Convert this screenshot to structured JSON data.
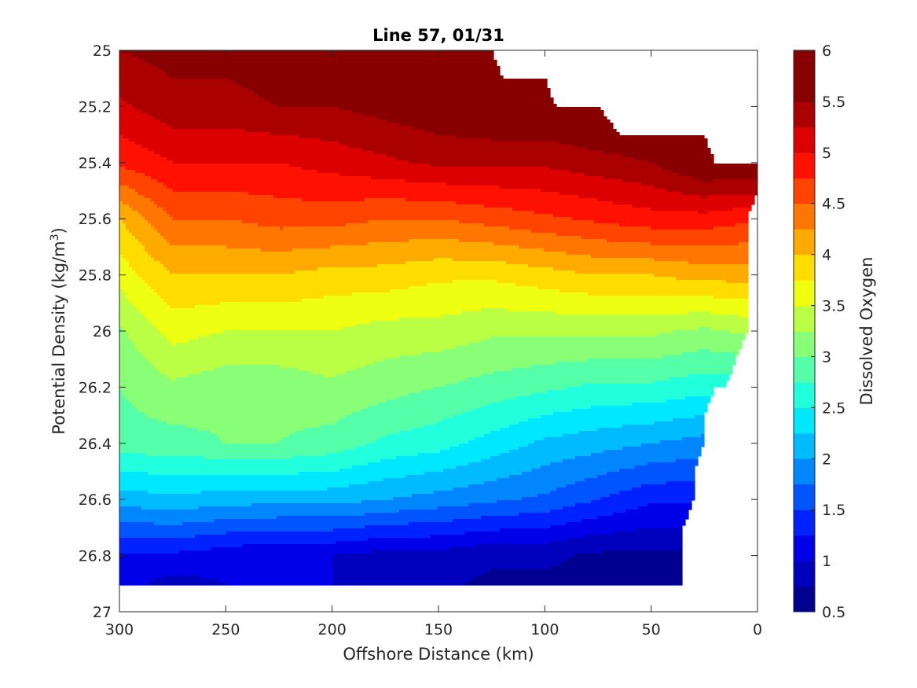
{
  "chart_data": {
    "type": "heatmap",
    "subtype": "filled-contour",
    "title": "Line 57, 01/31",
    "xlabel": "Offshore Distance (km)",
    "ylabel": "Potential Density (kg/m",
    "ylabel_superscript": "3",
    "ylabel_suffix": ")",
    "xlim": [
      300,
      0
    ],
    "x_reversed": true,
    "ylim": [
      25,
      27
    ],
    "y_reversed": true,
    "xticks": [
      300,
      250,
      200,
      150,
      100,
      50,
      0
    ],
    "xtick_labels": [
      "300",
      "250",
      "200",
      "150",
      "100",
      "50",
      "0"
    ],
    "yticks": [
      25,
      25.2,
      25.4,
      25.6,
      25.8,
      26,
      26.2,
      26.4,
      26.6,
      26.8,
      27
    ],
    "ytick_labels": [
      "25",
      "25.2",
      "25.4",
      "25.6",
      "25.8",
      "26",
      "26.2",
      "26.4",
      "26.6",
      "26.8",
      "27"
    ],
    "colorbar": {
      "label": "Dissolved Oxygen",
      "range": [
        0.5,
        6
      ],
      "ticks": [
        0.5,
        1,
        1.5,
        2,
        2.5,
        3,
        3.5,
        4,
        4.5,
        5,
        5.5,
        6
      ],
      "tick_labels": [
        "0.5",
        "1",
        "1.5",
        "2",
        "2.5",
        "3",
        "3.5",
        "4",
        "4.5",
        "5",
        "5.5",
        "6"
      ],
      "levels": [
        0.5,
        0.75,
        1,
        1.25,
        1.5,
        1.75,
        2,
        2.25,
        2.5,
        2.75,
        3,
        3.25,
        3.5,
        3.75,
        4,
        4.25,
        4.5,
        4.75,
        5,
        5.25,
        5.5,
        5.75,
        6
      ],
      "colormap": "jet",
      "colors": [
        "#000090",
        "#0000BD",
        "#0000E8",
        "#0022FF",
        "#0055FF",
        "#0087FF",
        "#00BBFF",
        "#00E8FF",
        "#22FFDD",
        "#55FFAA",
        "#88FF77",
        "#BBFF44",
        "#EEFF11",
        "#FFDD00",
        "#FFAA00",
        "#FF7700",
        "#FF4400",
        "#FF1100",
        "#DD0000",
        "#AA0000",
        "#880000"
      ]
    },
    "data_extent": {
      "description": "Top (lightest density) and bottom (heaviest density) sampled boundary along offshore distance",
      "x": [
        300,
        125,
        120,
        100,
        95,
        75,
        65,
        25,
        20,
        15,
        5,
        0
      ],
      "top_density": [
        25.0,
        25.0,
        25.1,
        25.1,
        25.2,
        25.2,
        25.3,
        25.3,
        25.4,
        25.4,
        25.4,
        25.4
      ],
      "bottom_boundary_x": [
        0,
        5,
        5,
        15,
        20,
        25,
        25,
        30,
        30,
        35,
        35,
        300
      ],
      "bottom_boundary_density": [
        25.5,
        25.6,
        26.0,
        26.2,
        26.2,
        26.3,
        26.4,
        26.5,
        26.6,
        26.7,
        26.9,
        26.9
      ]
    },
    "field": {
      "description": "Approximate dissolved oxygen values read from the contour colors, rows are density levels, columns are offshore distance",
      "x": [
        300,
        275,
        250,
        225,
        200,
        175,
        150,
        125,
        100,
        75,
        50,
        25,
        5
      ],
      "density": [
        25.0,
        25.2,
        25.4,
        25.6,
        25.8,
        26.0,
        26.2,
        26.4,
        26.6,
        26.8,
        26.9
      ],
      "values": [
        [
          5.5,
          5.6,
          5.6,
          5.7,
          5.8,
          6.0,
          6.0,
          6.0,
          null,
          null,
          null,
          null,
          null
        ],
        [
          5.2,
          5.4,
          5.4,
          5.5,
          5.5,
          5.6,
          5.7,
          5.8,
          5.8,
          5.9,
          null,
          null,
          null
        ],
        [
          4.8,
          5.0,
          5.0,
          5.0,
          5.1,
          5.2,
          5.3,
          5.3,
          5.3,
          5.4,
          5.5,
          5.8,
          5.8
        ],
        [
          4.0,
          4.5,
          4.5,
          4.6,
          4.6,
          4.5,
          4.5,
          4.6,
          4.7,
          4.8,
          4.9,
          4.9,
          4.8
        ],
        [
          3.6,
          4.0,
          4.0,
          4.0,
          3.9,
          3.9,
          3.8,
          3.8,
          3.9,
          4.0,
          4.0,
          4.1,
          4.1
        ],
        [
          3.2,
          3.6,
          3.5,
          3.5,
          3.5,
          3.4,
          3.4,
          3.3,
          3.3,
          3.3,
          3.3,
          3.2,
          3.3
        ],
        [
          3.0,
          3.2,
          3.1,
          3.1,
          3.2,
          3.1,
          3.0,
          2.9,
          2.8,
          2.7,
          2.7,
          2.6,
          null
        ],
        [
          2.9,
          2.9,
          3.0,
          3.0,
          2.9,
          2.7,
          2.6,
          2.4,
          2.2,
          2.1,
          2.0,
          1.9,
          null
        ],
        [
          2.1,
          2.2,
          2.1,
          2.1,
          2.1,
          2.0,
          1.9,
          1.8,
          1.7,
          1.5,
          1.3,
          null,
          null
        ],
        [
          1.2,
          1.2,
          1.1,
          1.0,
          1.0,
          0.9,
          0.9,
          0.8,
          0.8,
          0.7,
          0.7,
          null,
          null
        ],
        [
          1.1,
          0.9,
          1.0,
          1.0,
          1.0,
          0.9,
          0.8,
          0.7,
          0.7,
          0.7,
          0.7,
          null,
          null
        ]
      ]
    }
  }
}
